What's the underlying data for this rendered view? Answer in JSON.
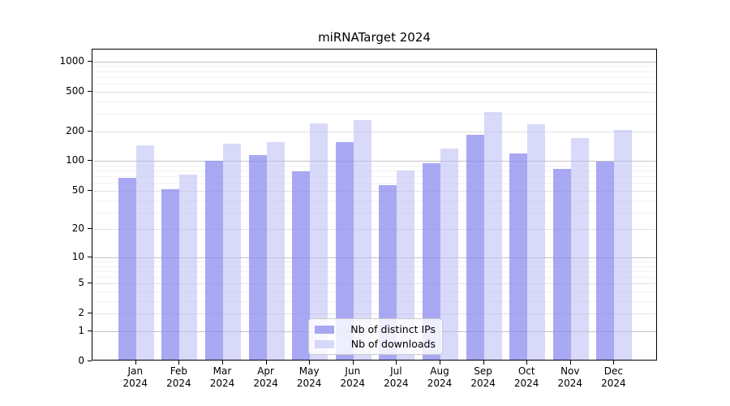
{
  "title": "miRNATarget 2024",
  "colors": {
    "ips_bar": "#8686ee",
    "ips_bar_alpha": 0.72,
    "downloads_bar": "#babaf6",
    "downloads_bar_alpha": 0.55,
    "grid_decade": "#c3c3c3",
    "grid_labeled": "#e2e2e2",
    "grid_minor": "#f2f2f2",
    "axis": "#000000",
    "legend_border": "#cccccc"
  },
  "chart_data": {
    "type": "bar",
    "title": "miRNATarget 2024",
    "categories": [
      "Jan 2024",
      "Feb 2024",
      "Mar 2024",
      "Apr 2024",
      "May 2024",
      "Jun 2024",
      "Jul 2024",
      "Aug 2024",
      "Sep 2024",
      "Oct 2024",
      "Nov 2024",
      "Dec 2024"
    ],
    "series": [
      {
        "name": "Nb of distinct IPs",
        "values": [
          65,
          50,
          97,
          110,
          76,
          150,
          55,
          92,
          178,
          115,
          80,
          96
        ]
      },
      {
        "name": "Nb of downloads",
        "values": [
          140,
          70,
          145,
          150,
          230,
          250,
          77,
          130,
          300,
          225,
          165,
          200
        ]
      }
    ],
    "xlabel": "",
    "ylabel": "",
    "yscale": "log1p",
    "ylim": [
      0,
      1320
    ],
    "yticks": [
      0,
      1,
      2,
      5,
      10,
      20,
      50,
      100,
      200,
      500,
      1000
    ],
    "ytick_labels": [
      "0",
      "1",
      "2",
      "5",
      "10",
      "20",
      "50",
      "100",
      "200",
      "500",
      "1000"
    ],
    "minor_gridlines": [
      3,
      4,
      6,
      7,
      8,
      9,
      30,
      40,
      60,
      70,
      80,
      90,
      300,
      400,
      600,
      700,
      800,
      900
    ],
    "grid": true,
    "legend_position": "lower center-right inside"
  },
  "legend": {
    "items": [
      {
        "label": "Nb of distinct IPs"
      },
      {
        "label": "Nb of downloads"
      }
    ]
  }
}
